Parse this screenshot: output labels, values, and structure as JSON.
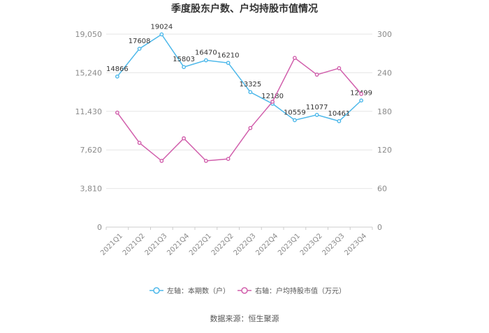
{
  "chart_data": {
    "type": "line",
    "title": "季度股东户数、户均持股市值情况",
    "categories": [
      "2021Q1",
      "2021Q2",
      "2021Q3",
      "2021Q4",
      "2022Q1",
      "2022Q2",
      "2022Q3",
      "2022Q4",
      "2023Q1",
      "2023Q2",
      "2023Q3",
      "2023Q4"
    ],
    "left_axis": {
      "ylim": [
        0,
        19050
      ],
      "ticks": [
        0,
        3810,
        7620,
        11430,
        15240,
        19050
      ],
      "tick_labels": [
        "0",
        "3,810",
        "7,620",
        "11,430",
        "15,240",
        "19,050"
      ]
    },
    "right_axis": {
      "ylim": [
        0,
        300
      ],
      "ticks": [
        0,
        60,
        120,
        180,
        240,
        300
      ],
      "tick_labels": [
        "0",
        "60",
        "120",
        "180",
        "240",
        "300"
      ]
    },
    "series": [
      {
        "name": "左轴：本期数（户）",
        "axis": "left",
        "color": "#4db8ea",
        "values": [
          14866,
          17608,
          19024,
          15803,
          16470,
          16210,
          13325,
          12180,
          10559,
          11077,
          10461,
          12499
        ],
        "labels": [
          "14866",
          "17608",
          "19024",
          "15803",
          "16470",
          "16210",
          "13325",
          "12180",
          "10559",
          "11077",
          "10461",
          "12499"
        ]
      },
      {
        "name": "右轴：户均持股市值（万元）",
        "axis": "right",
        "color": "#d15fac",
        "values": [
          178,
          131,
          103,
          138,
          103,
          106,
          154,
          195,
          263,
          237,
          247,
          207
        ]
      }
    ],
    "grid": true,
    "legend_position": "bottom"
  },
  "source_text": "数据来源：恒生聚源"
}
